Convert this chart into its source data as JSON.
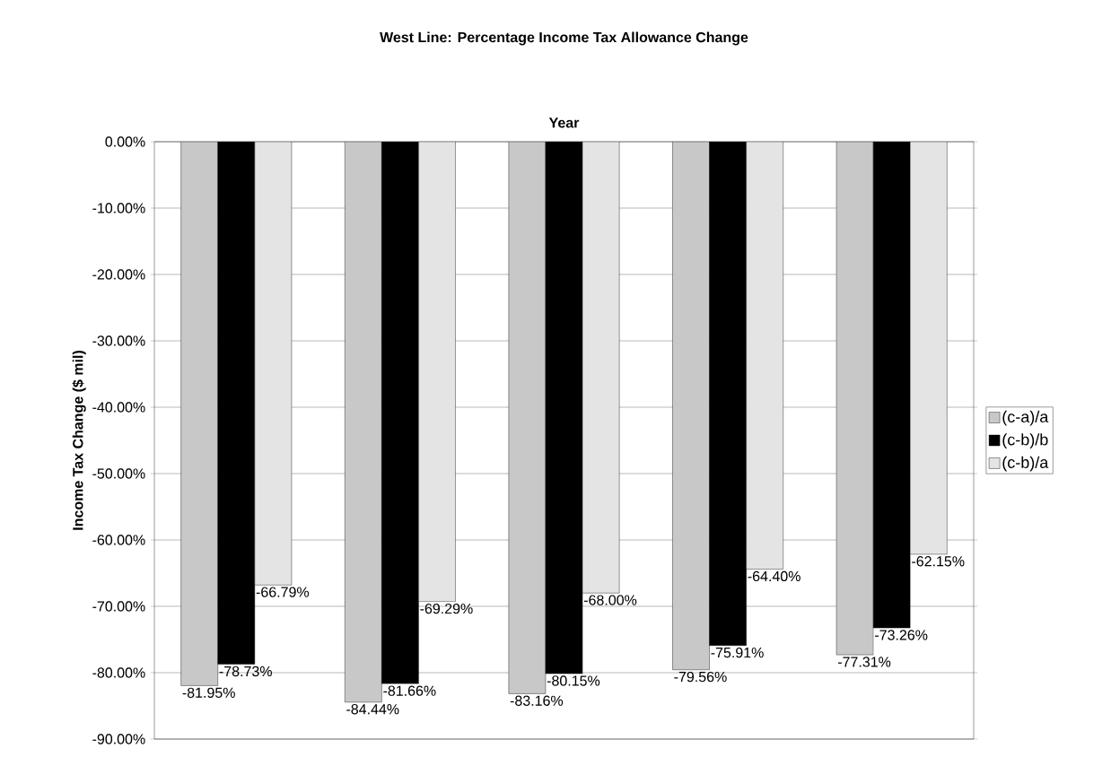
{
  "chart_data": {
    "type": "bar",
    "title": "West Line:  Percentage Income Tax Allowance Change",
    "xlabel": "Year",
    "ylabel": "Income Tax Change ($ mil)",
    "categories": [
      null,
      null,
      null,
      null,
      null
    ],
    "series": [
      {
        "name": "(c-a)/a",
        "color": "#c8c8c8",
        "values": [
          -81.95,
          -84.44,
          -83.16,
          -79.56,
          -77.31
        ],
        "value_labels": [
          "-81.95%",
          "-84.44%",
          "-83.16%",
          "-79.56%",
          "-77.31%"
        ]
      },
      {
        "name": "(c-b)/b",
        "color": "#000000",
        "values": [
          -78.73,
          -81.66,
          -80.15,
          -75.91,
          -73.26
        ],
        "value_labels": [
          "-78.73%",
          "-81.66%",
          "-80.15%",
          "-75.91%",
          "-73.26%"
        ]
      },
      {
        "name": "(c-b)/a",
        "color": "#e4e4e4",
        "values": [
          -66.79,
          -69.29,
          -68.0,
          -64.4,
          -62.15
        ],
        "value_labels": [
          "-66.79%",
          "-69.29%",
          "-68.00%",
          "-64.40%",
          "-62.15%"
        ]
      }
    ],
    "ylim": [
      -90,
      0
    ],
    "yticks": [
      {
        "value": 0,
        "label": "0.00%"
      },
      {
        "value": -10,
        "label": "-10.00%"
      },
      {
        "value": -20,
        "label": "-20.00%"
      },
      {
        "value": -30,
        "label": "-30.00%"
      },
      {
        "value": -40,
        "label": "-40.00%"
      },
      {
        "value": -50,
        "label": "-50.00%"
      },
      {
        "value": -60,
        "label": "-60.00%"
      },
      {
        "value": -70,
        "label": "-70.00%"
      },
      {
        "value": -80,
        "label": "-80.00%"
      },
      {
        "value": -90,
        "label": "-90.00%"
      }
    ],
    "grid": "y",
    "legend": "right"
  }
}
